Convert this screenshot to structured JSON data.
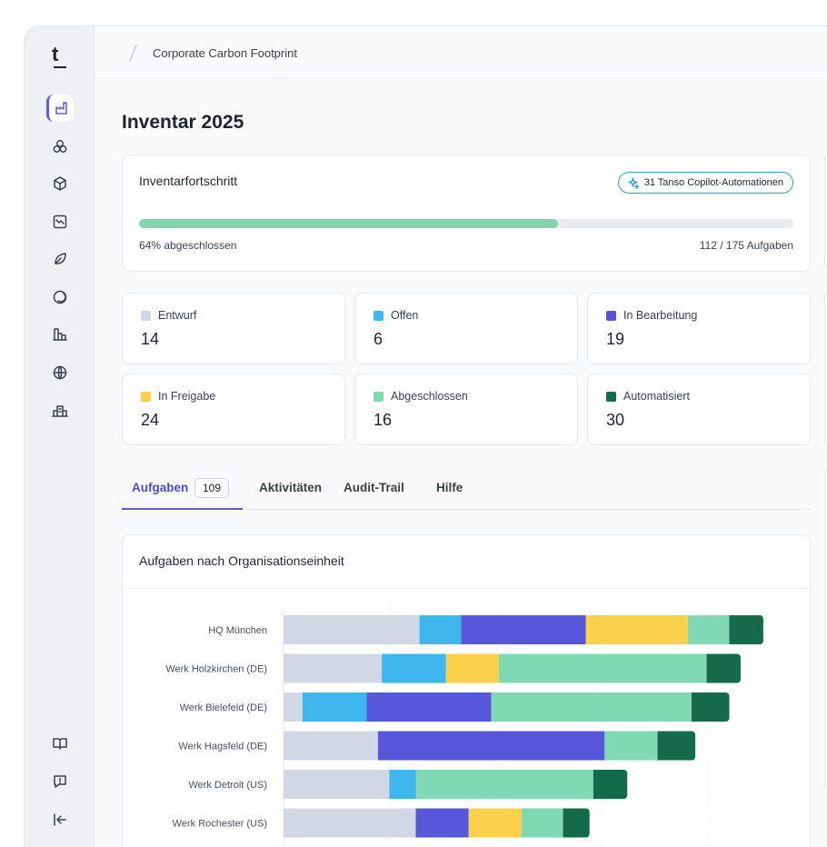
{
  "app": {
    "logo": "t"
  },
  "sidebar": {
    "top_items": [
      {
        "id": "factory",
        "icon": "factory-icon",
        "active": true
      },
      {
        "id": "hexagons",
        "icon": "hexagons-icon",
        "active": false
      },
      {
        "id": "box",
        "icon": "box-icon",
        "active": false
      },
      {
        "id": "chart",
        "icon": "chart-trend-icon",
        "active": false
      },
      {
        "id": "leaf",
        "icon": "leaf-icon",
        "active": false
      },
      {
        "id": "circle",
        "icon": "circle-icon",
        "active": false
      },
      {
        "id": "buildings",
        "icon": "buildings-icon",
        "active": false
      },
      {
        "id": "globe",
        "icon": "globe-icon",
        "active": false
      },
      {
        "id": "office",
        "icon": "office-icon",
        "active": false
      }
    ],
    "bottom_items": [
      {
        "id": "docs",
        "icon": "book-icon"
      },
      {
        "id": "feedback",
        "icon": "feedback-icon"
      },
      {
        "id": "collapse",
        "icon": "collapse-icon"
      }
    ]
  },
  "breadcrumb": {
    "current": "Corporate Carbon Footprint"
  },
  "page": {
    "title": "Inventar 2025"
  },
  "progress": {
    "title": "Inventarfortschritt",
    "badge": "31 Tanso Copilot-Automationen",
    "percent": 64,
    "left_label": "64% abgeschlossen",
    "right_label": "112 / 175 Aufgaben"
  },
  "colors": {
    "entwurf": "#d1d8e5",
    "offen": "#3fb6ee",
    "in_bearbeitung": "#5757d9",
    "in_freigabe": "#fbd14b",
    "abgeschlossen": "#7fd9b3",
    "automatisiert": "#136b4c",
    "accent": "#5a5ae0"
  },
  "stats": [
    {
      "label": "Entwurf",
      "value": "14",
      "color": "#d1d8e5"
    },
    {
      "label": "Offen",
      "value": "6",
      "color": "#3fb6ee"
    },
    {
      "label": "In Bearbeitung",
      "value": "19",
      "color": "#5757d9"
    },
    {
      "label": "In Freigabe",
      "value": "24",
      "color": "#fbd14b"
    },
    {
      "label": "Abgeschlossen",
      "value": "16",
      "color": "#7fd9b3"
    },
    {
      "label": "Automatisiert",
      "value": "30",
      "color": "#136b4c"
    }
  ],
  "tabs": [
    {
      "label": "Aufgaben",
      "count": "109",
      "active": true
    },
    {
      "label": "Aktivitäten",
      "active": false
    },
    {
      "label": "Audit-Trail",
      "active": false
    },
    {
      "label": "Hilfe",
      "active": false
    }
  ],
  "chart_data": {
    "type": "bar",
    "orientation": "horizontal",
    "stacked": true,
    "title": "Aufgaben nach Organisationseinheit",
    "categories": [
      "HQ München",
      "Werk Holzkirchen (DE)",
      "Werk Bielefeld (DE)",
      "Werk Hagsfeld (DE)",
      "Werk Detroit (US)",
      "Werk Rochester (US)"
    ],
    "series": [
      {
        "name": "Entwurf",
        "color": "#d1d8e5",
        "values": [
          36,
          26,
          5,
          25,
          28,
          35
        ]
      },
      {
        "name": "Offen",
        "color": "#3fb6ee",
        "values": [
          11,
          17,
          17,
          0,
          7,
          0
        ]
      },
      {
        "name": "In Bearbeitung",
        "color": "#5757d9",
        "values": [
          33,
          0,
          33,
          60,
          0,
          14
        ]
      },
      {
        "name": "In Freigabe",
        "color": "#fbd14b",
        "values": [
          27,
          14,
          0,
          0,
          0,
          14
        ]
      },
      {
        "name": "Abgeschlossen",
        "color": "#7fd9b3",
        "values": [
          11,
          55,
          53,
          14,
          47,
          11
        ]
      },
      {
        "name": "Automatisiert",
        "color": "#136b4c",
        "values": [
          9,
          9,
          10,
          10,
          9,
          7
        ]
      }
    ],
    "xlim": [
      0,
      134
    ],
    "grid": true
  }
}
